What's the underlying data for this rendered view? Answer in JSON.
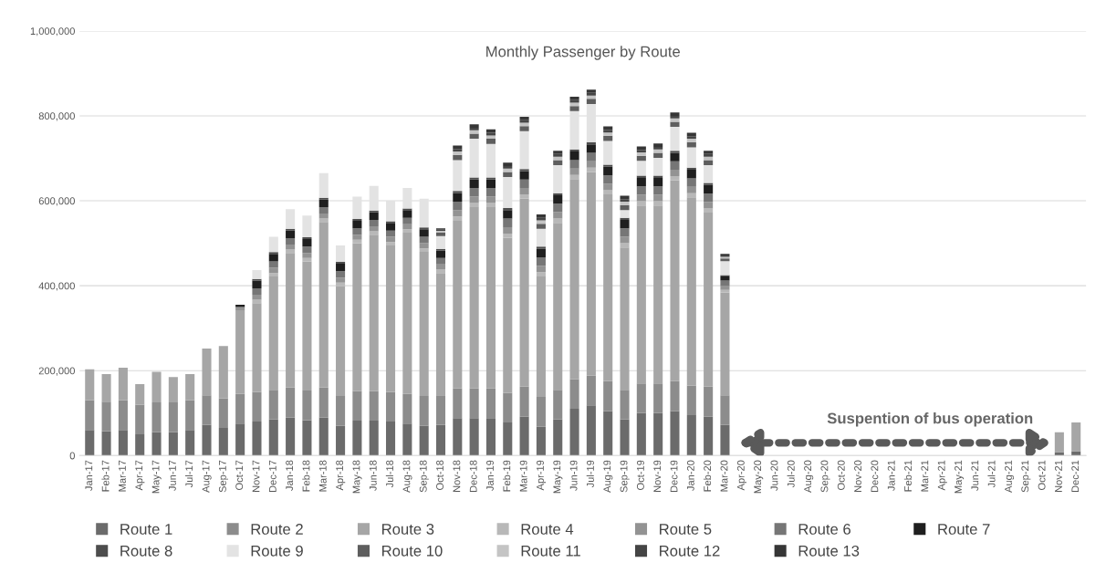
{
  "chart_data": {
    "type": "bar",
    "stacked": true,
    "title": "Monthly Passenger by Route",
    "categories": [
      "Jan-17",
      "Feb-17",
      "Mar-17",
      "Apr-17",
      "May-17",
      "Jun-17",
      "Jul-17",
      "Aug-17",
      "Sep-17",
      "Oct-17",
      "Nov-17",
      "Dec-17",
      "Jan-18",
      "Feb-18",
      "Mar-18",
      "Apr-18",
      "May-18",
      "Jun-18",
      "Jul-18",
      "Aug-18",
      "Sep-18",
      "Oct-18",
      "Nov-18",
      "Dec-18",
      "Jan-19",
      "Feb-19",
      "Mar-19",
      "Apr-19",
      "May-19",
      "Jun-19",
      "Jul-19",
      "Aug-19",
      "Sep-19",
      "Oct-19",
      "Nov-19",
      "Dec-19",
      "Jan-20",
      "Feb-20",
      "Mar-20",
      "Apr-20",
      "May-20",
      "Jun-20",
      "Jul-20",
      "Aug-20",
      "Sep-20",
      "Oct-20",
      "Nov-20",
      "Dec-20",
      "Jan-21",
      "Feb-21",
      "Mar-21",
      "Apr-21",
      "May-21",
      "Jun-21",
      "Jul-21",
      "Aug-21",
      "Sep-21",
      "Oct-21",
      "Nov-21",
      "Dec-21"
    ],
    "series": [
      {
        "name": "Route 1",
        "color": "#6b6b6b",
        "values": [
          60000,
          57000,
          60000,
          50000,
          55000,
          55000,
          60000,
          72000,
          65000,
          75000,
          80000,
          85000,
          90000,
          83000,
          90000,
          70000,
          82000,
          82000,
          80000,
          75000,
          70000,
          72000,
          88000,
          88000,
          88000,
          78000,
          92000,
          68000,
          85000,
          110000,
          118000,
          105000,
          85000,
          100000,
          100000,
          105000,
          95000,
          92000,
          72000,
          0,
          0,
          0,
          0,
          0,
          0,
          0,
          0,
          0,
          0,
          0,
          0,
          0,
          0,
          0,
          0,
          0,
          0,
          0,
          8000,
          10000
        ]
      },
      {
        "name": "Route 2",
        "color": "#8c8c8c",
        "values": [
          70000,
          70000,
          70000,
          70000,
          70000,
          70000,
          70000,
          70000,
          70000,
          70000,
          70000,
          70000,
          70000,
          70000,
          70000,
          70000,
          70000,
          70000,
          70000,
          70000,
          70000,
          70000,
          70000,
          70000,
          70000,
          70000,
          70000,
          70000,
          70000,
          70000,
          70000,
          70000,
          70000,
          70000,
          70000,
          70000,
          70000,
          70000,
          70000,
          0,
          0,
          0,
          0,
          0,
          0,
          0,
          0,
          0,
          0,
          0,
          0,
          0,
          0,
          0,
          0,
          0,
          0,
          0,
          0,
          0
        ]
      },
      {
        "name": "Route 3",
        "color": "#a6a6a6",
        "values": [
          73000,
          65000,
          77000,
          48000,
          72000,
          60000,
          62000,
          110000,
          123000,
          197000,
          209000,
          267000,
          317000,
          304000,
          390000,
          259000,
          348000,
          368000,
          345000,
          380000,
          340000,
          288000,
          395000,
          427000,
          427000,
          365000,
          443000,
          284000,
          393000,
          471000,
          480000,
          440000,
          335000,
          419000,
          419000,
          473000,
          443000,
          410000,
          242000,
          0,
          0,
          0,
          0,
          0,
          0,
          0,
          0,
          0,
          0,
          0,
          0,
          0,
          0,
          0,
          0,
          0,
          0,
          0,
          47000,
          68000
        ]
      },
      {
        "name": "Route 4",
        "color": "#b8b8b8",
        "values": [
          0,
          0,
          0,
          0,
          0,
          0,
          0,
          0,
          0,
          0,
          8000,
          8000,
          8000,
          8000,
          8000,
          8000,
          8000,
          8000,
          8000,
          8000,
          8000,
          8000,
          10000,
          10000,
          10000,
          10000,
          10000,
          10000,
          10000,
          10000,
          10000,
          10000,
          10000,
          10000,
          10000,
          10000,
          10000,
          10000,
          6000,
          0,
          0,
          0,
          0,
          0,
          0,
          0,
          0,
          0,
          0,
          0,
          0,
          0,
          0,
          0,
          0,
          0,
          0,
          0,
          0,
          0
        ]
      },
      {
        "name": "Route 5",
        "color": "#939393",
        "values": [
          0,
          0,
          0,
          0,
          0,
          0,
          0,
          0,
          0,
          8000,
          12000,
          12000,
          12000,
          12000,
          12000,
          12000,
          12000,
          12000,
          12000,
          12000,
          12000,
          12000,
          15000,
          15000,
          15000,
          15000,
          15000,
          15000,
          15000,
          15000,
          15000,
          15000,
          15000,
          15000,
          15000,
          15000,
          15000,
          15000,
          10000,
          0,
          0,
          0,
          0,
          0,
          0,
          0,
          0,
          0,
          0,
          0,
          0,
          0,
          0,
          0,
          0,
          0,
          0,
          0,
          0,
          0
        ]
      },
      {
        "name": "Route 6",
        "color": "#767676",
        "values": [
          0,
          0,
          0,
          0,
          0,
          0,
          0,
          0,
          0,
          0,
          15000,
          15000,
          15000,
          15000,
          15000,
          15000,
          15000,
          15000,
          15000,
          15000,
          15000,
          15000,
          20000,
          20000,
          20000,
          20000,
          20000,
          20000,
          20000,
          20000,
          20000,
          20000,
          20000,
          20000,
          20000,
          20000,
          20000,
          20000,
          12000,
          0,
          0,
          0,
          0,
          0,
          0,
          0,
          0,
          0,
          0,
          0,
          0,
          0,
          0,
          0,
          0,
          0,
          0,
          0,
          0,
          0
        ]
      },
      {
        "name": "Route 7",
        "color": "#1f1f1f",
        "values": [
          0,
          0,
          0,
          0,
          0,
          0,
          0,
          0,
          0,
          5000,
          18000,
          18000,
          18000,
          18000,
          18000,
          18000,
          18000,
          18000,
          18000,
          18000,
          18000,
          18000,
          20000,
          20000,
          20000,
          20000,
          20000,
          20000,
          20000,
          20000,
          20000,
          20000,
          20000,
          20000,
          20000,
          20000,
          20000,
          20000,
          10000,
          0,
          0,
          0,
          0,
          0,
          0,
          0,
          0,
          0,
          0,
          0,
          0,
          0,
          0,
          0,
          0,
          0,
          0,
          0,
          0,
          0
        ]
      },
      {
        "name": "Route 8",
        "color": "#4d4d4d",
        "values": [
          0,
          0,
          0,
          0,
          0,
          0,
          0,
          0,
          0,
          0,
          4000,
          4000,
          4000,
          4000,
          4000,
          4000,
          4000,
          4000,
          4000,
          4000,
          4000,
          4000,
          5000,
          5000,
          5000,
          5000,
          5000,
          5000,
          5000,
          5000,
          5000,
          5000,
          5000,
          5000,
          5000,
          5000,
          5000,
          5000,
          3000,
          0,
          0,
          0,
          0,
          0,
          0,
          0,
          0,
          0,
          0,
          0,
          0,
          0,
          0,
          0,
          0,
          0,
          0,
          0,
          0,
          0
        ]
      },
      {
        "name": "Route 9",
        "color": "#e3e3e3",
        "values": [
          0,
          0,
          0,
          0,
          0,
          0,
          0,
          0,
          0,
          0,
          21000,
          36000,
          46000,
          51000,
          58000,
          39000,
          53000,
          58000,
          48000,
          48000,
          68000,
          30000,
          73000,
          91000,
          79000,
          73000,
          89000,
          42000,
          66000,
          90000,
          90000,
          56000,
          18000,
          35000,
          42000,
          56000,
          48000,
          42000,
          33000,
          0,
          0,
          0,
          0,
          0,
          0,
          0,
          0,
          0,
          0,
          0,
          0,
          0,
          0,
          0,
          0,
          0,
          0,
          0,
          0,
          0
        ]
      },
      {
        "name": "Route 10",
        "color": "#5e5e5e",
        "values": [
          0,
          0,
          0,
          0,
          0,
          0,
          0,
          0,
          0,
          0,
          0,
          0,
          0,
          0,
          0,
          0,
          0,
          0,
          0,
          0,
          0,
          8000,
          12000,
          12000,
          12000,
          12000,
          12000,
          12000,
          12000,
          12000,
          12000,
          12000,
          12000,
          12000,
          12000,
          12000,
          12000,
          12000,
          6000,
          0,
          0,
          0,
          0,
          0,
          0,
          0,
          0,
          0,
          0,
          0,
          0,
          0,
          0,
          0,
          0,
          0,
          0,
          0,
          0,
          0
        ]
      },
      {
        "name": "Route 11",
        "color": "#c4c4c4",
        "values": [
          0,
          0,
          0,
          0,
          0,
          0,
          0,
          0,
          0,
          0,
          0,
          0,
          0,
          0,
          0,
          0,
          0,
          0,
          0,
          0,
          0,
          4000,
          8000,
          8000,
          8000,
          8000,
          8000,
          8000,
          8000,
          8000,
          8000,
          8000,
          8000,
          8000,
          8000,
          8000,
          8000,
          8000,
          4000,
          0,
          0,
          0,
          0,
          0,
          0,
          0,
          0,
          0,
          0,
          0,
          0,
          0,
          0,
          0,
          0,
          0,
          0,
          0,
          0,
          0
        ]
      },
      {
        "name": "Route 12",
        "color": "#454545",
        "values": [
          0,
          0,
          0,
          0,
          0,
          0,
          0,
          0,
          0,
          0,
          0,
          0,
          0,
          0,
          0,
          0,
          0,
          0,
          0,
          0,
          0,
          3000,
          6000,
          6000,
          6000,
          6000,
          6000,
          6000,
          6000,
          6000,
          6000,
          6000,
          6000,
          6000,
          6000,
          6000,
          6000,
          6000,
          3000,
          0,
          0,
          0,
          0,
          0,
          0,
          0,
          0,
          0,
          0,
          0,
          0,
          0,
          0,
          0,
          0,
          0,
          0,
          0,
          0,
          0
        ]
      },
      {
        "name": "Route 13",
        "color": "#363636",
        "values": [
          0,
          0,
          0,
          0,
          0,
          0,
          0,
          0,
          0,
          0,
          0,
          0,
          0,
          0,
          0,
          0,
          0,
          0,
          0,
          0,
          0,
          3000,
          8000,
          8000,
          8000,
          8000,
          8000,
          8000,
          8000,
          8000,
          8000,
          8000,
          8000,
          8000,
          8000,
          8000,
          8000,
          8000,
          4000,
          0,
          0,
          0,
          0,
          0,
          0,
          0,
          0,
          0,
          0,
          0,
          0,
          0,
          0,
          0,
          0,
          0,
          0,
          0,
          0,
          0
        ]
      }
    ],
    "ylim": [
      0,
      1000000
    ],
    "yticks": [
      0,
      {
        "value": 200000,
        "label": "200,000"
      },
      {
        "value": 400000,
        "label": "400,000"
      },
      {
        "value": 600000,
        "label": "600,000"
      },
      {
        "value": 800000,
        "label": "800,000"
      },
      {
        "value": 1000000,
        "label": "1,000,000"
      }
    ],
    "grid": "y",
    "legend": "bottom",
    "annotations": [
      "Suspention of bus operation"
    ]
  }
}
